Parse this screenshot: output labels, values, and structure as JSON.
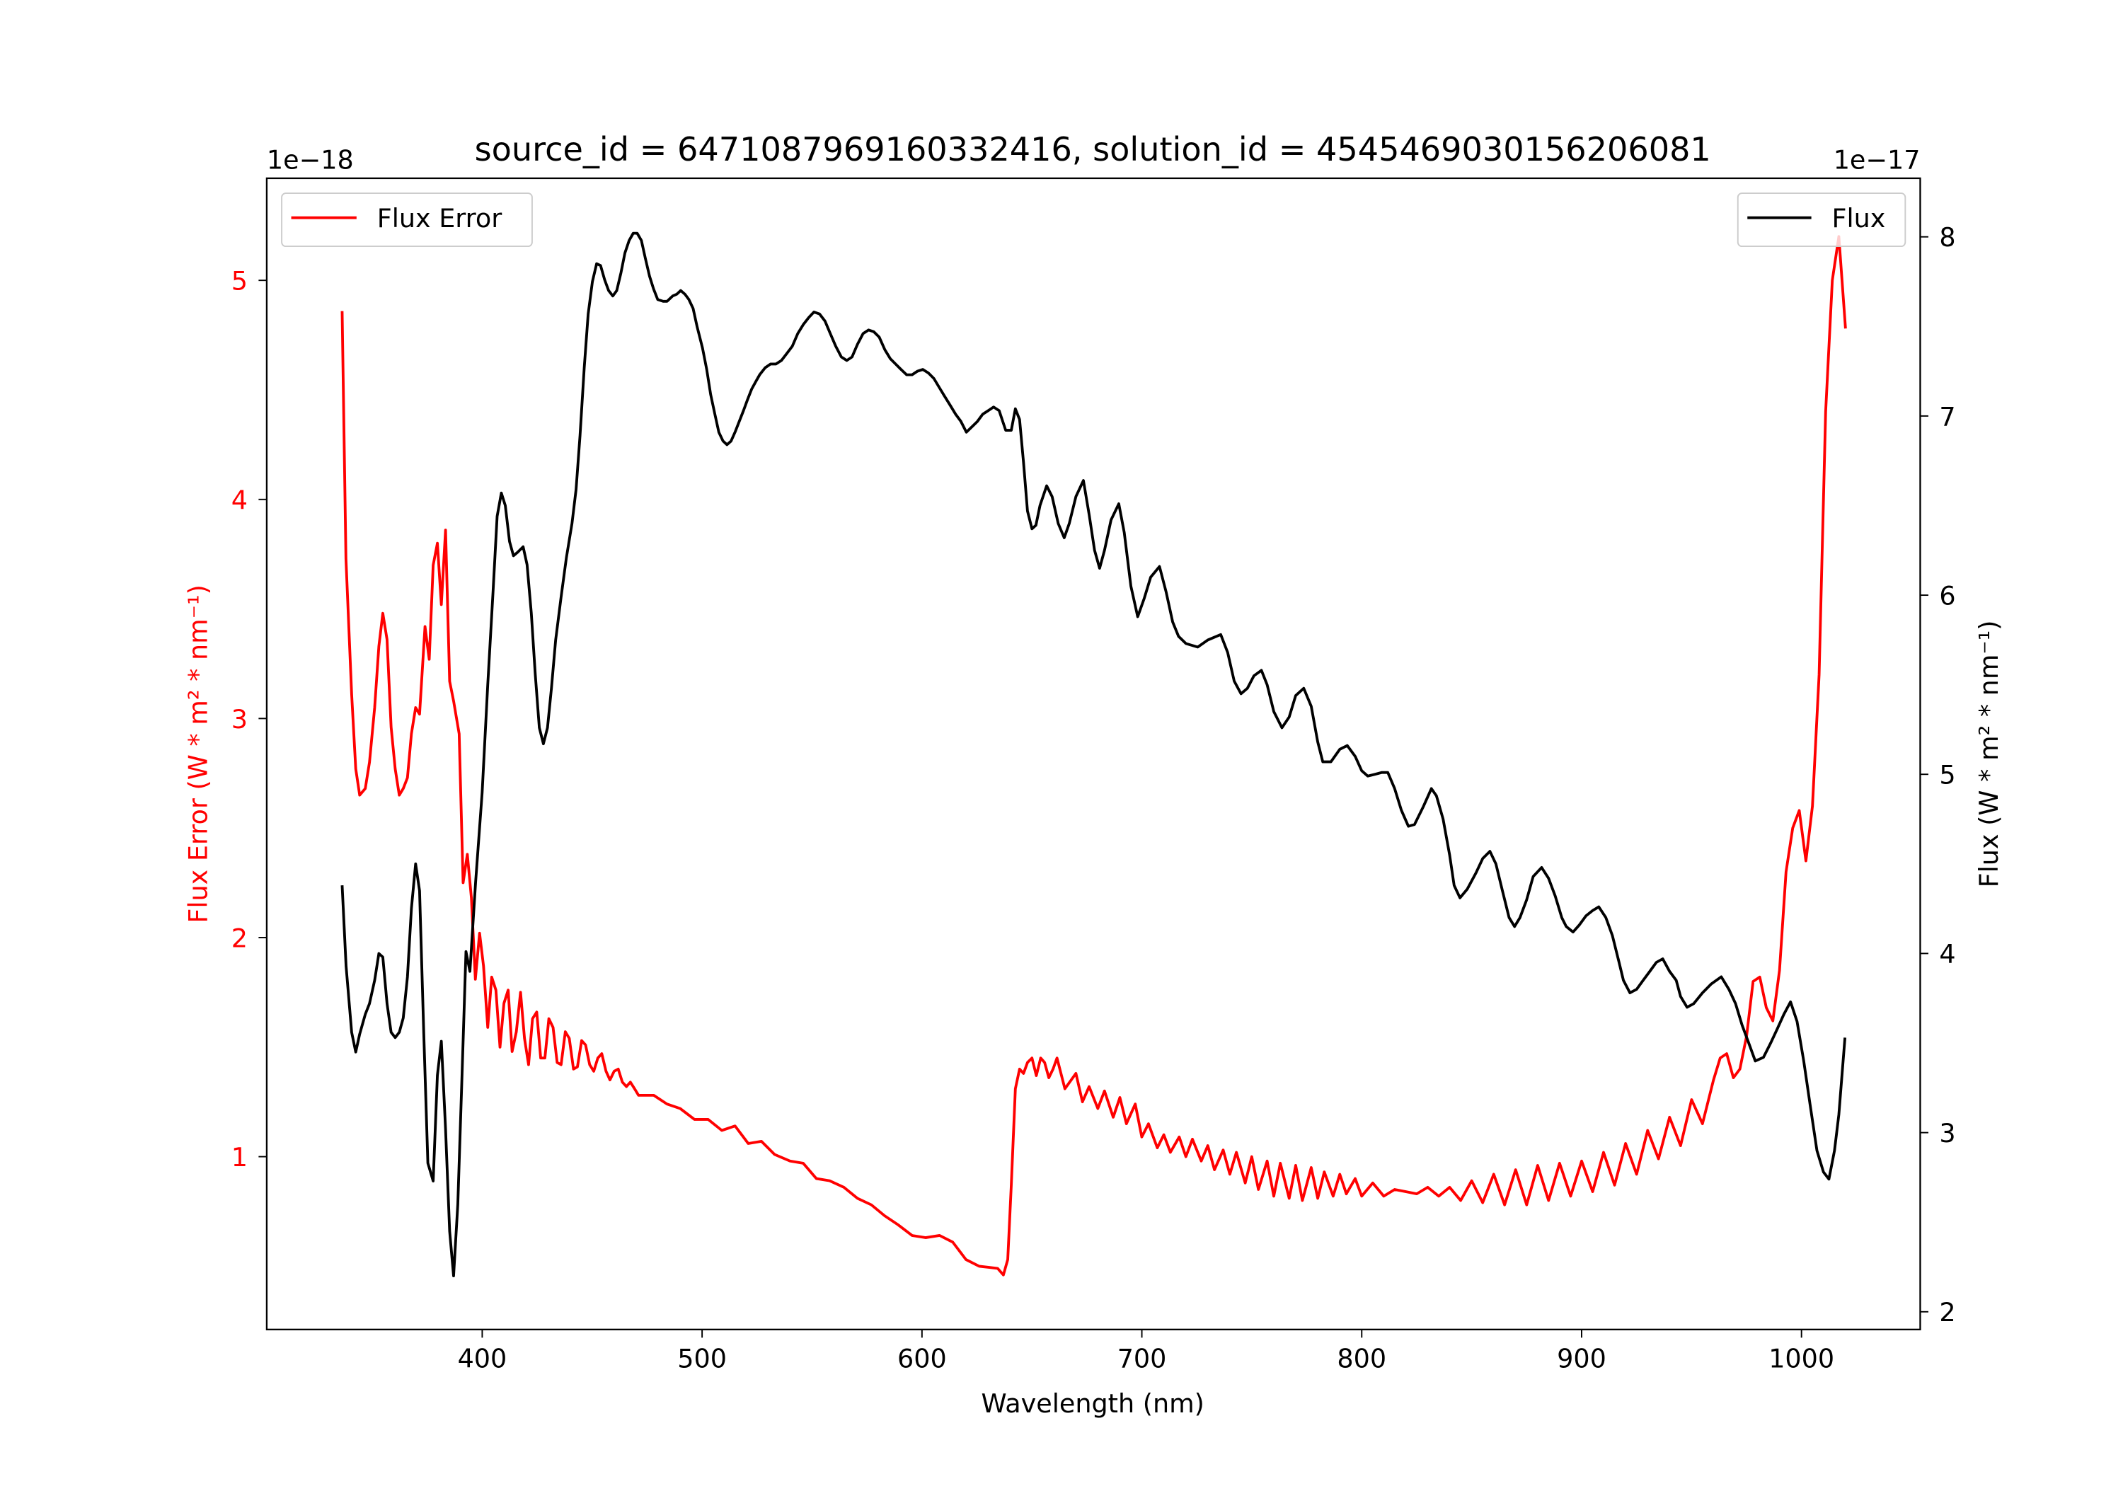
{
  "chart_data": {
    "type": "line",
    "title": "source_id = 6471087969160332416, solution_id = 4545469030156206081",
    "xlabel": "Wavelength (nm)",
    "xlim": [
      302,
      1054
    ],
    "xticks": [
      400,
      500,
      600,
      700,
      800,
      900,
      1000
    ],
    "grid": false,
    "axes": [
      {
        "side": "left",
        "ylabel": "Flux Error (W * m² * nm⁻¹)",
        "offset_label": "1e−18",
        "ylim": [
          0.211,
          5.466
        ],
        "yticks": [
          1,
          2,
          3,
          4,
          5
        ],
        "color": "#ff0000",
        "legend_placement": "top-left"
      },
      {
        "side": "right",
        "ylabel": "Flux (W * m² * nm⁻¹)",
        "offset_label": "1e−17",
        "ylim": [
          1.901,
          8.327
        ],
        "yticks": [
          2,
          3,
          4,
          5,
          6,
          7,
          8
        ],
        "color": "#000000",
        "legend_placement": "top-right"
      }
    ],
    "series": [
      {
        "name": "Flux Error",
        "axis": "left",
        "color": "#ff0000",
        "x": [
          336.3,
          338,
          340.6,
          342.5,
          344.3,
          346.8,
          348.7,
          351.1,
          353,
          354.8,
          356.7,
          358.6,
          360.4,
          362.3,
          364.1,
          366,
          367.8,
          369.7,
          371.5,
          374,
          375.9,
          377.7,
          379.6,
          381.4,
          383.3,
          385.2,
          387,
          389.5,
          391.3,
          393.2,
          395.1,
          396.9,
          398.8,
          400.6,
          402.5,
          404.3,
          406.2,
          408.1,
          409.9,
          411.8,
          413.6,
          415.5,
          417.4,
          419.2,
          421.1,
          422.9,
          424.8,
          426.6,
          428.5,
          430.3,
          432.2,
          434.1,
          435.9,
          437.8,
          439.6,
          441.5,
          443.3,
          445.2,
          447,
          448.9,
          450.7,
          452.6,
          454.4,
          456.3,
          458.1,
          460,
          461.9,
          463.7,
          465.6,
          467.4,
          469.3,
          471.1,
          478,
          484,
          490,
          496.5,
          502.7,
          509,
          515,
          521,
          527,
          533,
          540,
          546,
          552,
          558,
          564.5,
          570.7,
          577,
          583,
          589,
          595.5,
          601.6,
          608,
          614,
          620,
          626,
          634.4,
          637,
          639,
          640.6,
          642.5,
          644.4,
          646.2,
          648,
          650,
          652,
          654,
          655.8,
          657.7,
          659.6,
          661.4,
          665,
          670,
          673,
          676,
          680,
          683,
          687,
          690,
          693,
          697,
          700,
          703,
          707,
          710,
          713,
          717,
          720,
          723,
          727,
          730,
          733,
          737,
          740,
          743,
          747,
          750,
          753,
          757,
          760,
          763,
          767,
          770,
          773,
          777,
          780,
          783,
          787,
          790,
          793,
          797,
          800,
          805,
          810,
          815,
          820,
          825,
          830,
          835,
          840,
          845,
          850,
          855,
          860,
          865,
          870,
          875,
          880,
          885,
          890,
          895,
          900,
          905,
          910,
          915,
          920,
          925,
          930,
          935,
          940,
          945,
          950,
          955,
          960,
          963,
          966,
          969,
          972,
          975,
          978,
          981,
          984,
          987,
          990,
          993,
          996,
          999,
          1002,
          1005,
          1008,
          1011,
          1014,
          1017,
          1020
        ],
        "y": [
          4.86,
          3.73,
          3.11,
          2.77,
          2.65,
          2.68,
          2.8,
          3.05,
          3.33,
          3.48,
          3.36,
          2.96,
          2.77,
          2.65,
          2.68,
          2.73,
          2.93,
          3.05,
          3.02,
          3.42,
          3.27,
          3.7,
          3.8,
          3.52,
          3.86,
          3.17,
          3.08,
          2.93,
          2.25,
          2.38,
          2.18,
          1.81,
          2.02,
          1.87,
          1.59,
          1.82,
          1.76,
          1.5,
          1.7,
          1.76,
          1.48,
          1.57,
          1.75,
          1.54,
          1.42,
          1.63,
          1.66,
          1.45,
          1.45,
          1.63,
          1.59,
          1.43,
          1.42,
          1.57,
          1.54,
          1.4,
          1.41,
          1.53,
          1.51,
          1.42,
          1.39,
          1.45,
          1.47,
          1.39,
          1.35,
          1.39,
          1.4,
          1.34,
          1.32,
          1.34,
          1.31,
          1.28,
          1.28,
          1.24,
          1.22,
          1.17,
          1.17,
          1.12,
          1.14,
          1.06,
          1.07,
          1.01,
          0.98,
          0.97,
          0.9,
          0.89,
          0.86,
          0.81,
          0.78,
          0.73,
          0.69,
          0.64,
          0.63,
          0.64,
          0.61,
          0.53,
          0.5,
          0.49,
          0.46,
          0.53,
          0.87,
          1.31,
          1.4,
          1.38,
          1.43,
          1.45,
          1.37,
          1.45,
          1.43,
          1.36,
          1.4,
          1.45,
          1.31,
          1.38,
          1.25,
          1.32,
          1.22,
          1.3,
          1.18,
          1.27,
          1.15,
          1.24,
          1.09,
          1.15,
          1.04,
          1.1,
          1.02,
          1.09,
          1.0,
          1.08,
          0.98,
          1.05,
          0.94,
          1.03,
          0.92,
          1.02,
          0.88,
          1.0,
          0.85,
          0.98,
          0.82,
          0.97,
          0.81,
          0.96,
          0.8,
          0.95,
          0.81,
          0.93,
          0.82,
          0.92,
          0.83,
          0.9,
          0.82,
          0.88,
          0.82,
          0.85,
          0.84,
          0.83,
          0.86,
          0.82,
          0.86,
          0.8,
          0.89,
          0.79,
          0.92,
          0.78,
          0.94,
          0.78,
          0.96,
          0.8,
          0.97,
          0.82,
          0.98,
          0.84,
          1.02,
          0.87,
          1.06,
          0.92,
          1.12,
          0.99,
          1.18,
          1.05,
          1.26,
          1.15,
          1.35,
          1.45,
          1.47,
          1.36,
          1.4,
          1.55,
          1.8,
          1.82,
          1.68,
          1.62,
          1.85,
          2.3,
          2.5,
          2.58,
          2.35,
          2.6,
          3.2,
          4.4,
          5.0,
          5.2,
          4.78
        ]
      },
      {
        "name": "Flux",
        "axis": "right",
        "color": "#000000",
        "x": [
          336.3,
          338.1,
          340.6,
          342.5,
          344.3,
          346.8,
          348.7,
          351.1,
          353,
          354.8,
          356.7,
          358.6,
          360.4,
          362.3,
          364.1,
          366,
          367.8,
          369.7,
          371.5,
          373.4,
          375.3,
          377.7,
          379.6,
          381.4,
          383.3,
          385.2,
          387,
          388.9,
          390.8,
          392.6,
          394.4,
          397,
          400,
          402.5,
          404.9,
          406.8,
          408.7,
          410.5,
          412.4,
          414.2,
          416.1,
          418.6,
          420.4,
          422.3,
          424.1,
          426,
          427.8,
          429.7,
          431.5,
          433.4,
          435.9,
          438.3,
          440.8,
          442.7,
          444.5,
          446.4,
          448.2,
          450.1,
          452,
          453.8,
          455.7,
          457.5,
          459.4,
          461.2,
          463.1,
          464.9,
          466.8,
          468.7,
          470.5,
          472.4,
          474.2,
          476.1,
          477.9,
          479.8,
          482.3,
          484.1,
          486.6,
          488.5,
          490.3,
          492.2,
          494,
          495.9,
          497.7,
          500.2,
          502.1,
          503.9,
          505.8,
          507.6,
          509.5,
          511.3,
          513.2,
          515,
          516.9,
          518.8,
          520.6,
          522.5,
          524.3,
          526.2,
          528.7,
          531.1,
          533.6,
          536.1,
          538.6,
          541,
          543.5,
          546,
          548.5,
          550.9,
          553.4,
          555.9,
          558.3,
          560.8,
          563.3,
          565.8,
          568.2,
          570.7,
          573.2,
          575.7,
          578.1,
          580.6,
          583.1,
          585.6,
          588,
          590.5,
          593,
          595.5,
          597.9,
          600.4,
          602.9,
          605.4,
          607.8,
          610.3,
          612.8,
          615.3,
          617.7,
          620.2,
          622.7,
          625.2,
          627.6,
          630.1,
          632.6,
          635.1,
          638.1,
          640.6,
          642.5,
          644.4,
          646.2,
          648,
          650,
          651.8,
          653.7,
          656.7,
          659.2,
          662,
          664.7,
          667,
          670,
          673.4,
          676,
          678.5,
          680.8,
          683,
          686,
          689.5,
          692,
          695,
          698.1,
          701,
          704,
          708,
          711,
          714,
          716.7,
          720,
          725.4,
          730,
          735.9,
          739,
          742,
          745.1,
          748,
          751,
          754.4,
          757,
          760,
          763.7,
          767,
          770,
          773.6,
          777,
          780,
          782.3,
          786,
          790,
          793.4,
          797,
          800,
          802.7,
          806,
          809,
          811.9,
          815,
          818,
          821.2,
          824,
          828,
          831.7,
          834,
          837,
          840,
          842,
          844.7,
          848,
          852,
          855,
          858.3,
          861,
          864,
          867,
          869.5,
          872,
          875,
          878,
          881.8,
          885,
          888,
          891,
          893,
          896.1,
          899,
          902,
          905,
          907.8,
          911,
          914,
          917,
          919,
          922,
          925,
          928,
          931,
          934,
          936.9,
          940,
          943,
          945,
          948,
          951,
          955,
          959,
          963.5,
          967,
          970,
          973,
          976,
          979,
          982.7,
          986,
          989,
          992,
          995,
          998,
          1001,
          1004,
          1007,
          1010,
          1012.5,
          1015,
          1017,
          1019.8
        ],
        "y": [
          4.38,
          3.93,
          3.56,
          3.45,
          3.55,
          3.66,
          3.72,
          3.85,
          4.0,
          3.98,
          3.72,
          3.56,
          3.53,
          3.56,
          3.64,
          3.87,
          4.25,
          4.5,
          4.35,
          3.55,
          2.83,
          2.73,
          3.32,
          3.51,
          3.02,
          2.45,
          2.2,
          2.6,
          3.32,
          4.01,
          3.9,
          4.4,
          4.9,
          5.5,
          6.02,
          6.44,
          6.57,
          6.5,
          6.3,
          6.22,
          6.24,
          6.27,
          6.17,
          5.9,
          5.56,
          5.26,
          5.17,
          5.26,
          5.48,
          5.75,
          5.99,
          6.21,
          6.4,
          6.59,
          6.89,
          7.27,
          7.57,
          7.75,
          7.85,
          7.84,
          7.76,
          7.7,
          7.67,
          7.7,
          7.8,
          7.91,
          7.98,
          8.02,
          8.02,
          7.98,
          7.88,
          7.78,
          7.71,
          7.65,
          7.64,
          7.64,
          7.67,
          7.68,
          7.7,
          7.68,
          7.65,
          7.6,
          7.5,
          7.38,
          7.26,
          7.12,
          7.01,
          6.91,
          6.86,
          6.84,
          6.86,
          6.91,
          6.97,
          7.03,
          7.09,
          7.15,
          7.19,
          7.23,
          7.27,
          7.29,
          7.29,
          7.31,
          7.35,
          7.39,
          7.46,
          7.51,
          7.55,
          7.58,
          7.57,
          7.53,
          7.46,
          7.39,
          7.33,
          7.31,
          7.33,
          7.4,
          7.46,
          7.48,
          7.47,
          7.44,
          7.37,
          7.32,
          7.29,
          7.26,
          7.23,
          7.23,
          7.25,
          7.26,
          7.24,
          7.21,
          7.16,
          7.11,
          7.06,
          7.01,
          6.97,
          6.91,
          6.94,
          6.97,
          7.01,
          7.03,
          7.05,
          7.03,
          6.92,
          6.92,
          7.04,
          6.98,
          6.74,
          6.47,
          6.37,
          6.39,
          6.5,
          6.61,
          6.55,
          6.4,
          6.32,
          6.4,
          6.55,
          6.64,
          6.45,
          6.25,
          6.15,
          6.25,
          6.42,
          6.51,
          6.35,
          6.05,
          5.88,
          5.98,
          6.1,
          6.16,
          6.02,
          5.85,
          5.77,
          5.73,
          5.71,
          5.75,
          5.78,
          5.68,
          5.52,
          5.45,
          5.48,
          5.55,
          5.58,
          5.5,
          5.35,
          5.26,
          5.32,
          5.44,
          5.48,
          5.38,
          5.18,
          5.07,
          5.07,
          5.14,
          5.16,
          5.1,
          5.02,
          4.99,
          5.0,
          5.01,
          5.01,
          4.92,
          4.8,
          4.71,
          4.72,
          4.82,
          4.92,
          4.88,
          4.75,
          4.55,
          4.38,
          4.31,
          4.36,
          4.45,
          4.53,
          4.57,
          4.5,
          4.35,
          4.2,
          4.15,
          4.2,
          4.3,
          4.43,
          4.48,
          4.42,
          4.32,
          4.2,
          4.15,
          4.12,
          4.16,
          4.21,
          4.24,
          4.26,
          4.2,
          4.1,
          3.95,
          3.85,
          3.78,
          3.8,
          3.85,
          3.9,
          3.95,
          3.97,
          3.9,
          3.85,
          3.76,
          3.7,
          3.72,
          3.78,
          3.83,
          3.87,
          3.8,
          3.72,
          3.6,
          3.5,
          3.4,
          3.42,
          3.5,
          3.58,
          3.66,
          3.73,
          3.62,
          3.4,
          3.15,
          2.9,
          2.78,
          2.74,
          2.9,
          3.1,
          3.53
        ]
      }
    ]
  }
}
